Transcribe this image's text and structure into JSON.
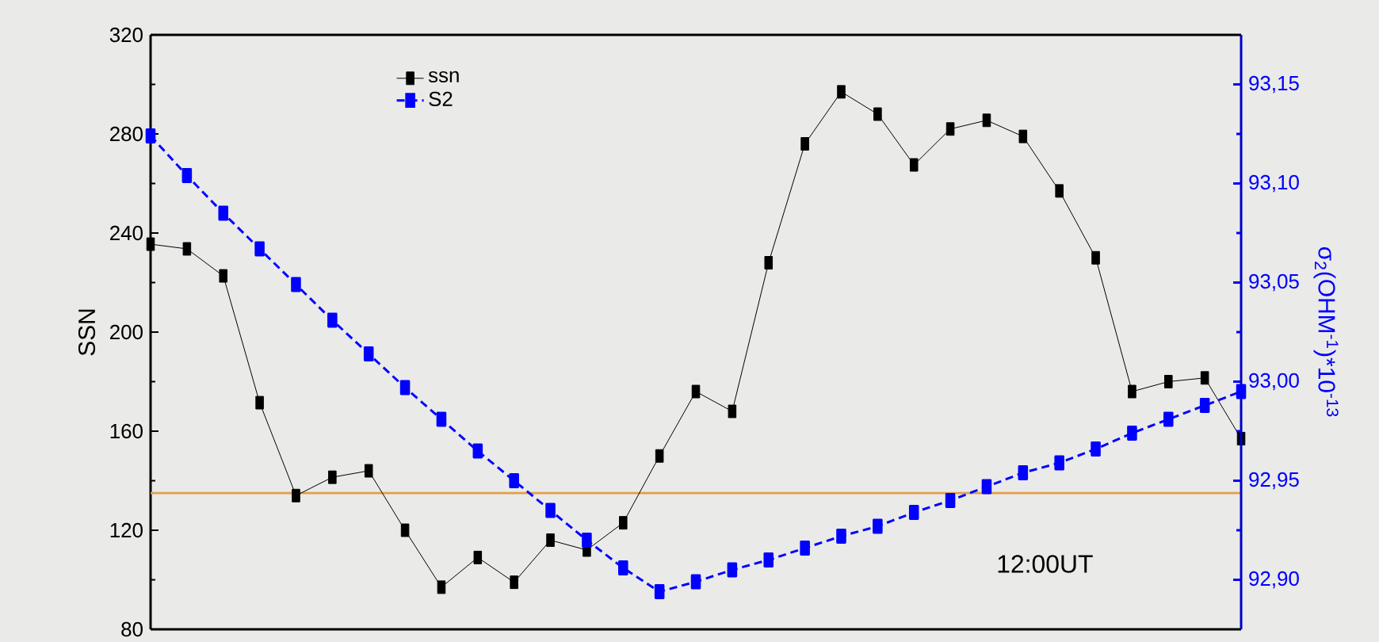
{
  "chart_data": {
    "type": "line",
    "categories": [
      null,
      null,
      null,
      null,
      null,
      null,
      null,
      null,
      null,
      null,
      null,
      null,
      null,
      null,
      null,
      null,
      null,
      null,
      null,
      null,
      null,
      null,
      null,
      null,
      null,
      null,
      null,
      null,
      null,
      null,
      null
    ],
    "ylabel": "SSN",
    "y2label": "σ$_{2}$(OHM$^{-1}$)*10$^{-13}$",
    "ylim": [
      80,
      320
    ],
    "yticks": [
      80,
      120,
      160,
      200,
      240,
      280,
      320
    ],
    "y2lim": [
      92.875,
      93.175
    ],
    "y2ticks": [
      {
        "value": 92.9,
        "label": "92,90"
      },
      {
        "value": 92.95,
        "label": "92,95"
      },
      {
        "value": 93.0,
        "label": "93,00"
      },
      {
        "value": 93.05,
        "label": "93,05"
      },
      {
        "value": 93.1,
        "label": "93,10"
      },
      {
        "value": 93.15,
        "label": "93,15"
      }
    ],
    "series": [
      {
        "name": "ssn",
        "color": "#000000",
        "line_style": "solid",
        "values": [
          235.5,
          233.6,
          222.7,
          171.5,
          134,
          141.4,
          144,
          120,
          97,
          109,
          99,
          116,
          112,
          123,
          150,
          176,
          168,
          228,
          276,
          297,
          288,
          267.5,
          282,
          285.5,
          279,
          257,
          230,
          176,
          180,
          181.5,
          157
        ]
      },
      {
        "name": "S2",
        "color": "#0000ff",
        "line_style": "dashed",
        "axis": "y2",
        "values": [
          93.124,
          93.104,
          93.085,
          93.067,
          93.049,
          93.031,
          93.014,
          92.997,
          92.981,
          92.965,
          92.95,
          92.935,
          92.92,
          92.906,
          92.894,
          92.899,
          92.905,
          92.91,
          92.916,
          92.922,
          92.927,
          92.934,
          92.94,
          92.947,
          92.954,
          92.959,
          92.966,
          92.974,
          92.981,
          92.988,
          92.995
        ]
      }
    ],
    "marker": "square",
    "legend": "top left",
    "grid": false,
    "ref_lines": [
      {
        "axis": "y",
        "value": 135,
        "color": "#e0a04c"
      }
    ],
    "annotations": [
      "12:00UT"
    ]
  }
}
